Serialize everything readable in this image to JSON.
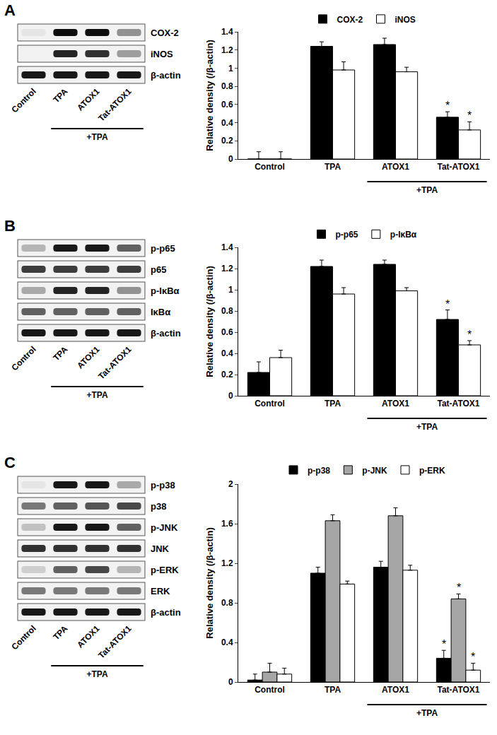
{
  "panel_labels": [
    "A",
    "B",
    "C"
  ],
  "blots": [
    {
      "lanes": [
        "Control",
        "TPA",
        "ATOX1",
        "Tat-ATOX1"
      ],
      "group_label": {
        "text": "+TPA",
        "lanes": [
          "TPA",
          "ATOX1",
          "Tat-ATOX1"
        ]
      },
      "rows": [
        {
          "label": "COX-2",
          "intensity": [
            0.05,
            0.95,
            0.95,
            0.4
          ]
        },
        {
          "label": "iNOS",
          "intensity": [
            0,
            0.85,
            0.8,
            0.35
          ]
        },
        {
          "label": "β-actin",
          "intensity": [
            0.9,
            0.9,
            0.9,
            0.9
          ]
        }
      ]
    },
    {
      "lanes": [
        "Control",
        "TPA",
        "ATOX1",
        "Tat-ATOX1"
      ],
      "group_label": {
        "text": "+TPA",
        "lanes": [
          "TPA",
          "ATOX1",
          "Tat-ATOX1"
        ]
      },
      "rows": [
        {
          "label": "p-p65",
          "intensity": [
            0.25,
            0.9,
            0.9,
            0.6
          ]
        },
        {
          "label": "p65",
          "intensity": [
            0.75,
            0.75,
            0.75,
            0.75
          ]
        },
        {
          "label": "p-IκBα",
          "intensity": [
            0.3,
            0.85,
            0.85,
            0.4
          ]
        },
        {
          "label": "IκBα",
          "intensity": [
            0.6,
            0.6,
            0.6,
            0.6
          ]
        },
        {
          "label": "β-actin",
          "intensity": [
            0.9,
            0.9,
            0.9,
            0.9
          ]
        }
      ]
    },
    {
      "lanes": [
        "Control",
        "TPA",
        "ATOX1",
        "Tat-ATOX1"
      ],
      "group_label": {
        "text": "+TPA",
        "lanes": [
          "TPA",
          "ATOX1",
          "Tat-ATOX1"
        ]
      },
      "rows": [
        {
          "label": "p-p38",
          "intensity": [
            0.05,
            0.9,
            0.9,
            0.3
          ]
        },
        {
          "label": "p38",
          "intensity": [
            0.5,
            0.6,
            0.65,
            0.7
          ]
        },
        {
          "label": "p-JNK",
          "intensity": [
            0.2,
            0.9,
            0.9,
            0.6
          ]
        },
        {
          "label": "JNK",
          "intensity": [
            0.8,
            0.8,
            0.8,
            0.8
          ]
        },
        {
          "label": "p-ERK",
          "intensity": [
            0.15,
            0.6,
            0.7,
            0.25
          ]
        },
        {
          "label": "ERK",
          "intensity": [
            0.5,
            0.5,
            0.5,
            0.5
          ]
        },
        {
          "label": "β-actin",
          "intensity": [
            0.9,
            0.9,
            0.9,
            0.9
          ]
        }
      ]
    }
  ],
  "chart_data": [
    {
      "type": "bar",
      "y_label": "Relative density (/β-actin)",
      "categories": [
        "Control",
        "TPA",
        "ATOX1",
        "Tat-ATOX1"
      ],
      "group_label": {
        "text": "+TPA",
        "categories": [
          "ATOX1",
          "Tat-ATOX1"
        ]
      },
      "series": [
        {
          "name": "COX-2",
          "color": "#000000",
          "values": [
            0,
            1.24,
            1.26,
            0.46
          ],
          "error": [
            0.08,
            0.05,
            0.07,
            0.06
          ],
          "significance": [
            null,
            null,
            null,
            "*"
          ]
        },
        {
          "name": "iNOS",
          "color": "#ffffff",
          "values": [
            0,
            0.98,
            0.96,
            0.32
          ],
          "error": [
            0.08,
            0.09,
            0.05,
            0.09
          ],
          "significance": [
            null,
            null,
            null,
            "*"
          ]
        }
      ],
      "ylim": [
        0,
        1.4
      ],
      "yticks": [
        0,
        0.2,
        0.4,
        0.6,
        0.8,
        1,
        1.2,
        1.4
      ],
      "grid": false,
      "legend": "top"
    },
    {
      "type": "bar",
      "y_label": "Relative density (/β-actin)",
      "categories": [
        "Control",
        "TPA",
        "ATOX1",
        "Tat-ATOX1"
      ],
      "group_label": {
        "text": "+TPA",
        "categories": [
          "ATOX1",
          "Tat-ATOX1"
        ]
      },
      "series": [
        {
          "name": "p-p65",
          "color": "#000000",
          "values": [
            0.22,
            1.22,
            1.24,
            0.72
          ],
          "error": [
            0.1,
            0.06,
            0.04,
            0.09
          ],
          "significance": [
            null,
            null,
            null,
            "*"
          ]
        },
        {
          "name": "p-IκBα",
          "color": "#ffffff",
          "values": [
            0.36,
            0.96,
            0.99,
            0.48
          ],
          "error": [
            0.07,
            0.06,
            0.03,
            0.04
          ],
          "significance": [
            null,
            null,
            null,
            "*"
          ]
        }
      ],
      "ylim": [
        0,
        1.4
      ],
      "yticks": [
        0,
        0.2,
        0.4,
        0.6,
        0.8,
        1,
        1.2,
        1.4
      ],
      "grid": false,
      "legend": "top"
    },
    {
      "type": "bar",
      "y_label": "Relative density (/β-actin)",
      "categories": [
        "Control",
        "TPA",
        "ATOX1",
        "Tat-ATOX1"
      ],
      "group_label": {
        "text": "+TPA",
        "categories": [
          "ATOX1",
          "Tat-ATOX1"
        ]
      },
      "series": [
        {
          "name": "p-p38",
          "color": "#000000",
          "values": [
            0.02,
            1.1,
            1.16,
            0.24
          ],
          "error": [
            0.06,
            0.06,
            0.06,
            0.08
          ],
          "significance": [
            null,
            null,
            null,
            "*"
          ]
        },
        {
          "name": "p-JNK",
          "color": "#a6a6a6",
          "values": [
            0.1,
            1.63,
            1.68,
            0.84
          ],
          "error": [
            0.09,
            0.06,
            0.08,
            0.05
          ],
          "significance": [
            null,
            null,
            null,
            "*"
          ]
        },
        {
          "name": "p-ERK",
          "color": "#ffffff",
          "values": [
            0.08,
            0.99,
            1.13,
            0.12
          ],
          "error": [
            0.06,
            0.03,
            0.05,
            0.07
          ],
          "significance": [
            null,
            null,
            null,
            "*"
          ]
        }
      ],
      "ylim": [
        0,
        2
      ],
      "yticks": [
        0,
        0.4,
        0.8,
        1.2,
        1.6,
        2
      ],
      "grid": false,
      "legend": "top"
    }
  ]
}
